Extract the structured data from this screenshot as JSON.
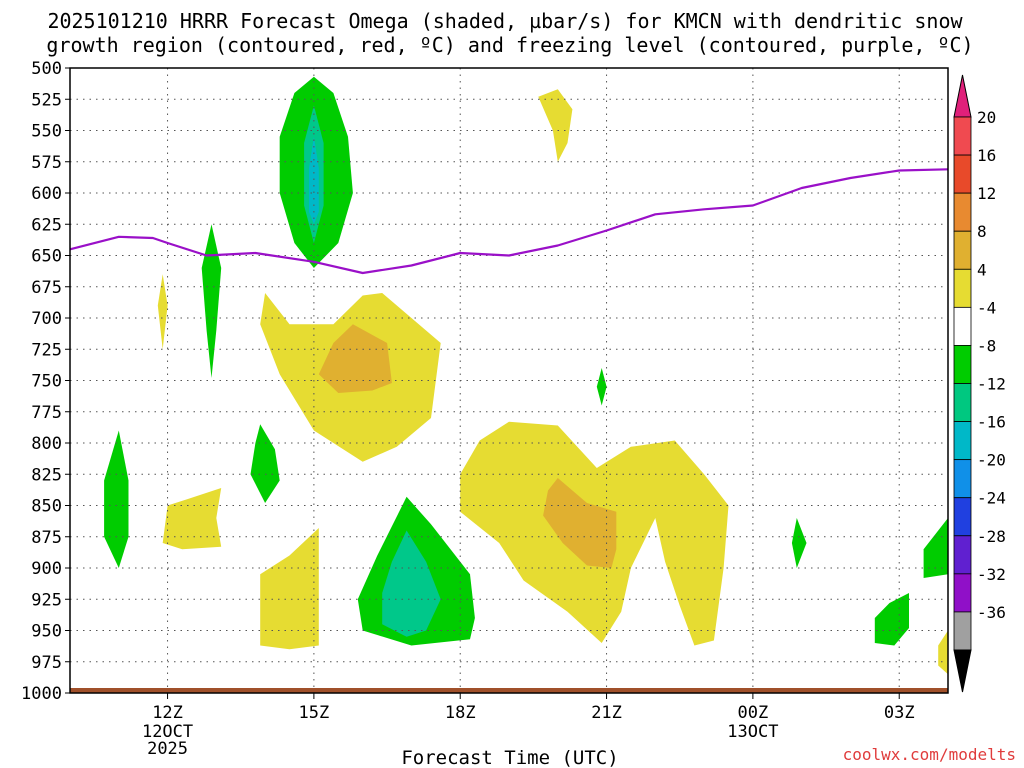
{
  "chart_data": {
    "type": "heatmap",
    "title": {
      "line1": "2025101210 HRRR Forecast Omega (shaded, µbar/s) for KMCN with dendritic snow",
      "line2": "growth region (contoured, red, ºC) and freezing level (contoured, purple, ºC)"
    },
    "xlabel": "Forecast Time (UTC)",
    "credit": "coolwx.com/modelts",
    "x_range_hours": [
      10,
      28
    ],
    "y_range_hpa": [
      500,
      1000
    ],
    "y_ticks": [
      500,
      525,
      550,
      575,
      600,
      625,
      650,
      675,
      700,
      725,
      750,
      775,
      800,
      825,
      850,
      875,
      900,
      925,
      950,
      975,
      1000
    ],
    "x_ticks": [
      {
        "h": 12,
        "label": "12Z",
        "sub": [
          "12OCT",
          "2025"
        ]
      },
      {
        "h": 15,
        "label": "15Z",
        "sub": []
      },
      {
        "h": 18,
        "label": "18Z",
        "sub": []
      },
      {
        "h": 21,
        "label": "21Z",
        "sub": []
      },
      {
        "h": 24,
        "label": "00Z",
        "sub": [
          "13OCT"
        ]
      },
      {
        "h": 27,
        "label": "03Z",
        "sub": []
      }
    ],
    "colorbar": {
      "labels": [
        "20",
        "16",
        "12",
        "8",
        "4",
        "-4",
        "-8",
        "-12",
        "-16",
        "-20",
        "-24",
        "-28",
        "-32",
        "-36"
      ],
      "colors": [
        "#9a0a4a",
        "#f04a50",
        "#e84a2a",
        "#e88a30",
        "#e0b030",
        "#e6dc32",
        "#ffffff",
        "#00cc00",
        "#00c880",
        "#00b8c8",
        "#1090e8",
        "#2040e0",
        "#6020d0",
        "#9010c8",
        "#a0a0a0",
        "#000000"
      ],
      "top_arrow_color": "#e0207a",
      "bottom_arrow_color": "#000000"
    },
    "freezing_level": {
      "color": "#9a10c8",
      "points": [
        [
          10,
          645
        ],
        [
          11,
          635
        ],
        [
          11.7,
          636
        ],
        [
          12,
          640
        ],
        [
          12.8,
          650
        ],
        [
          13.8,
          648
        ],
        [
          15,
          655
        ],
        [
          16,
          664
        ],
        [
          17,
          658
        ],
        [
          18,
          648
        ],
        [
          19,
          650
        ],
        [
          20,
          642
        ],
        [
          21,
          630
        ],
        [
          22,
          617
        ],
        [
          23,
          613
        ],
        [
          24,
          610
        ],
        [
          25,
          596
        ],
        [
          26,
          588
        ],
        [
          27,
          582
        ],
        [
          28,
          581
        ]
      ]
    },
    "surface_band_color": "#a0502a",
    "shading": [
      {
        "omega": -6,
        "color": "#00cc00",
        "points": [
          [
            15.0,
            507
          ],
          [
            15.4,
            520
          ],
          [
            15.7,
            555
          ],
          [
            15.8,
            600
          ],
          [
            15.5,
            640
          ],
          [
            15.0,
            660
          ],
          [
            14.6,
            640
          ],
          [
            14.3,
            600
          ],
          [
            14.3,
            555
          ],
          [
            14.6,
            520
          ]
        ]
      },
      {
        "omega": -10,
        "color": "#00c88a",
        "points": [
          [
            15.0,
            530
          ],
          [
            15.2,
            560
          ],
          [
            15.2,
            610
          ],
          [
            15.0,
            640
          ],
          [
            14.8,
            610
          ],
          [
            14.8,
            560
          ]
        ]
      },
      {
        "omega": -14,
        "color": "#00b8c8",
        "points": [
          [
            15.0,
            555
          ],
          [
            15.1,
            580
          ],
          [
            15.1,
            615
          ],
          [
            15.0,
            625
          ],
          [
            14.9,
            615
          ],
          [
            14.9,
            580
          ]
        ]
      },
      {
        "omega": -6,
        "color": "#00cc00",
        "points": [
          [
            12.9,
            625
          ],
          [
            13.1,
            660
          ],
          [
            13.0,
            710
          ],
          [
            12.9,
            748
          ],
          [
            12.8,
            710
          ],
          [
            12.7,
            660
          ]
        ]
      },
      {
        "omega": -6,
        "color": "#00cc00",
        "points": [
          [
            13.9,
            785
          ],
          [
            14.2,
            805
          ],
          [
            14.3,
            830
          ],
          [
            14.0,
            848
          ],
          [
            13.7,
            825
          ],
          [
            13.8,
            800
          ]
        ]
      },
      {
        "omega": -6,
        "color": "#00cc00",
        "points": [
          [
            11.0,
            790
          ],
          [
            11.2,
            830
          ],
          [
            11.2,
            875
          ],
          [
            11.0,
            900
          ],
          [
            10.7,
            875
          ],
          [
            10.7,
            830
          ]
        ]
      },
      {
        "omega": -6,
        "color": "#00cc00",
        "points": [
          [
            16.9,
            843
          ],
          [
            17.4,
            865
          ],
          [
            18.2,
            905
          ],
          [
            18.3,
            940
          ],
          [
            18.2,
            957
          ],
          [
            17.0,
            962
          ],
          [
            16.0,
            950
          ],
          [
            15.9,
            925
          ],
          [
            16.3,
            890
          ]
        ]
      },
      {
        "omega": -10,
        "color": "#00c88a",
        "points": [
          [
            16.9,
            870
          ],
          [
            17.3,
            895
          ],
          [
            17.6,
            925
          ],
          [
            17.3,
            950
          ],
          [
            16.9,
            955
          ],
          [
            16.4,
            945
          ],
          [
            16.4,
            920
          ],
          [
            16.6,
            895
          ]
        ]
      },
      {
        "omega": -6,
        "color": "#00cc00",
        "points": [
          [
            20.9,
            740
          ],
          [
            21.0,
            755
          ],
          [
            20.9,
            770
          ],
          [
            20.8,
            755
          ]
        ]
      },
      {
        "omega": -6,
        "color": "#00cc00",
        "points": [
          [
            24.9,
            860
          ],
          [
            25.1,
            880
          ],
          [
            24.9,
            900
          ],
          [
            24.8,
            880
          ]
        ]
      },
      {
        "omega": -6,
        "color": "#00cc00",
        "points": [
          [
            27.2,
            920
          ],
          [
            27.2,
            948
          ],
          [
            26.9,
            962
          ],
          [
            26.5,
            960
          ],
          [
            26.5,
            940
          ],
          [
            26.8,
            928
          ]
        ]
      },
      {
        "omega": -6,
        "color": "#00cc00",
        "points": [
          [
            28.0,
            860
          ],
          [
            28.0,
            905
          ],
          [
            27.5,
            908
          ],
          [
            27.5,
            885
          ]
        ]
      },
      {
        "omega": 6,
        "color": "#e6dc32",
        "points": [
          [
            20.0,
            517
          ],
          [
            20.3,
            533
          ],
          [
            20.2,
            560
          ],
          [
            20.0,
            575
          ],
          [
            19.9,
            550
          ],
          [
            19.6,
            523
          ]
        ]
      },
      {
        "omega": 6,
        "color": "#e6dc32",
        "points": [
          [
            11.9,
            665
          ],
          [
            12.0,
            690
          ],
          [
            11.9,
            725
          ],
          [
            11.8,
            690
          ]
        ]
      },
      {
        "omega": 6,
        "color": "#e6dc32",
        "points": [
          [
            16.4,
            680
          ],
          [
            17.6,
            720
          ],
          [
            17.4,
            780
          ],
          [
            16.7,
            803
          ],
          [
            16.0,
            815
          ],
          [
            15.0,
            790
          ],
          [
            14.3,
            745
          ],
          [
            13.9,
            705
          ],
          [
            14.0,
            680
          ],
          [
            14.5,
            705
          ],
          [
            15.4,
            705
          ],
          [
            16.0,
            682
          ]
        ]
      },
      {
        "omega": 10,
        "color": "#e0b030",
        "points": [
          [
            15.8,
            705
          ],
          [
            16.5,
            720
          ],
          [
            16.6,
            752
          ],
          [
            16.2,
            758
          ],
          [
            15.5,
            760
          ],
          [
            15.1,
            745
          ],
          [
            15.4,
            720
          ]
        ]
      },
      {
        "omega": 6,
        "color": "#e6dc32",
        "points": [
          [
            13.1,
            836
          ],
          [
            13.0,
            860
          ],
          [
            13.1,
            883
          ],
          [
            12.3,
            885
          ],
          [
            11.9,
            880
          ],
          [
            12.0,
            850
          ],
          [
            12.4,
            845
          ]
        ]
      },
      {
        "omega": 6,
        "color": "#e6dc32",
        "points": [
          [
            15.1,
            868
          ],
          [
            15.1,
            962
          ],
          [
            14.5,
            965
          ],
          [
            13.9,
            962
          ],
          [
            13.9,
            905
          ],
          [
            14.5,
            890
          ]
        ]
      },
      {
        "omega": 6,
        "color": "#e6dc32",
        "points": [
          [
            19.0,
            783
          ],
          [
            20.0,
            786
          ],
          [
            20.8,
            820
          ],
          [
            21.5,
            803
          ],
          [
            22.4,
            798
          ],
          [
            23.0,
            825
          ],
          [
            23.5,
            850
          ],
          [
            23.4,
            900
          ],
          [
            23.2,
            958
          ],
          [
            22.8,
            962
          ],
          [
            22.5,
            930
          ],
          [
            22.2,
            895
          ],
          [
            22.0,
            860
          ],
          [
            21.5,
            900
          ],
          [
            21.3,
            935
          ],
          [
            20.9,
            960
          ],
          [
            20.2,
            935
          ],
          [
            19.3,
            910
          ],
          [
            18.8,
            880
          ],
          [
            18.0,
            855
          ],
          [
            18.0,
            825
          ],
          [
            18.4,
            798
          ]
        ]
      },
      {
        "omega": 10,
        "color": "#e0b030",
        "points": [
          [
            20.0,
            828
          ],
          [
            20.6,
            848
          ],
          [
            21.2,
            855
          ],
          [
            21.2,
            885
          ],
          [
            21.1,
            900
          ],
          [
            20.6,
            898
          ],
          [
            20.1,
            880
          ],
          [
            19.7,
            858
          ],
          [
            19.8,
            838
          ]
        ]
      },
      {
        "omega": 6,
        "color": "#e6dc32",
        "points": [
          [
            28.0,
            950
          ],
          [
            28.0,
            985
          ],
          [
            27.8,
            978
          ],
          [
            27.8,
            962
          ]
        ]
      }
    ]
  }
}
